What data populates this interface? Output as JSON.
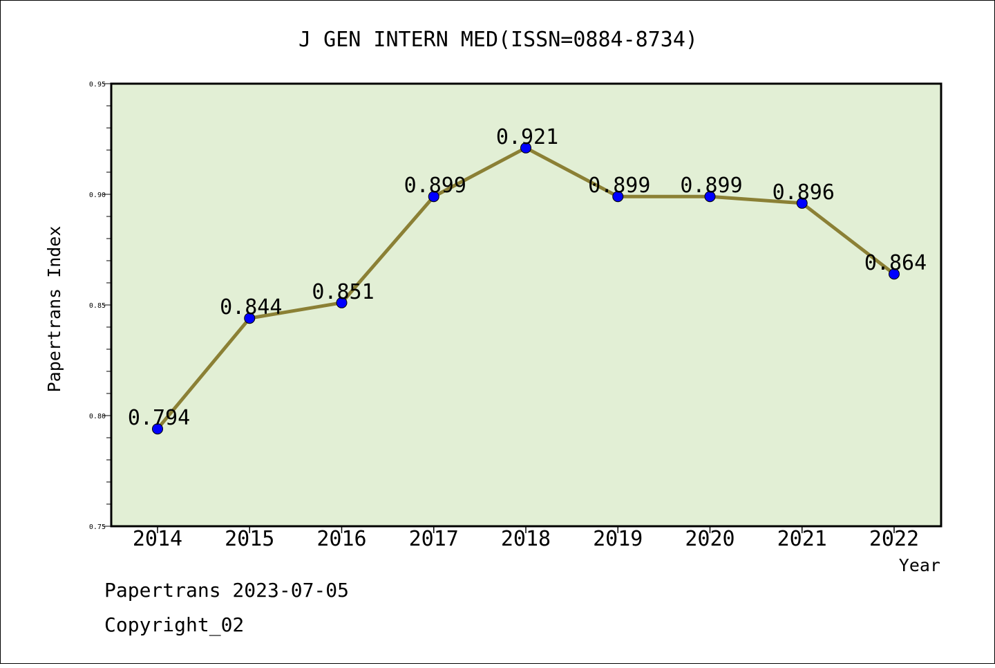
{
  "chart_data": {
    "type": "line",
    "title": "J GEN INTERN MED(ISSN=0884-8734)",
    "xlabel": "Year",
    "ylabel": "Papertrans Index",
    "categories": [
      "2014",
      "2015",
      "2016",
      "2017",
      "2018",
      "2019",
      "2020",
      "2021",
      "2022"
    ],
    "values": [
      0.794,
      0.844,
      0.851,
      0.899,
      0.921,
      0.899,
      0.899,
      0.896,
      0.864
    ],
    "data_labels": [
      "0.794",
      "0.844",
      "0.851",
      "0.899",
      "0.921",
      "0.899",
      "0.899",
      "0.896",
      "0.864"
    ],
    "ylim": [
      0.75,
      0.95
    ],
    "yticks": [
      0.75,
      0.8,
      0.85,
      0.9,
      0.95
    ],
    "ytick_labels": [
      "0.75",
      "0.80",
      "0.85",
      "0.90",
      "0.95"
    ],
    "grid": false,
    "colors": {
      "plot_background": "#e2efd5",
      "line": "#8b8035",
      "marker": "#0000ff"
    }
  },
  "footer": {
    "line1": "Papertrans 2023-07-05",
    "line2": "Copyright_02"
  }
}
